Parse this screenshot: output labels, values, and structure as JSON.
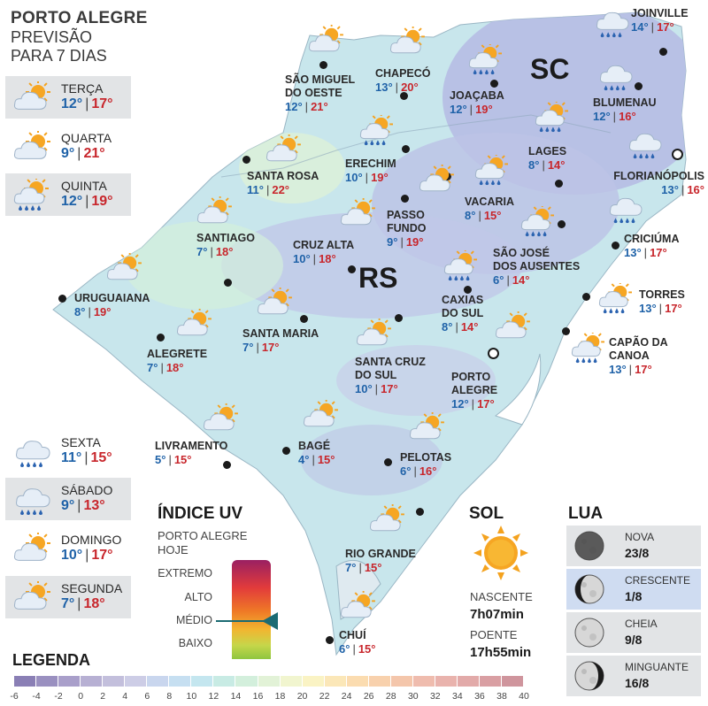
{
  "header": {
    "title": "PORTO ALEGRE",
    "subtitle_1": "PREVISÃO",
    "subtitle_2": "PARA 7 DIAS"
  },
  "forecast": [
    {
      "day": "TERÇA",
      "min": "12°",
      "max": "17°",
      "icon": "partly-cloudy-icon",
      "shaded": true
    },
    {
      "day": "QUARTA",
      "min": "9°",
      "max": "21°",
      "icon": "partly-cloudy-icon",
      "shaded": false
    },
    {
      "day": "QUINTA",
      "min": "12°",
      "max": "19°",
      "icon": "sun-rain-icon",
      "shaded": true
    },
    {
      "day": "SEXTA",
      "min": "11°",
      "max": "15°",
      "icon": "rain-cloud-icon",
      "shaded": false
    },
    {
      "day": "SÁBADO",
      "min": "9°",
      "max": "13°",
      "icon": "rain-cloud-icon",
      "shaded": true
    },
    {
      "day": "DOMINGO",
      "min": "10°",
      "max": "17°",
      "icon": "partly-cloudy-icon",
      "shaded": false
    },
    {
      "day": "SEGUNDA",
      "min": "7°",
      "max": "18°",
      "icon": "partly-cloudy-icon",
      "shaded": true
    }
  ],
  "states": {
    "sc": "SC",
    "rs": "RS"
  },
  "cities": [
    {
      "id": "joinville",
      "name": "JOINVILLE",
      "min": "14°",
      "max": "17°",
      "icon": "rain-cloud-icon"
    },
    {
      "id": "sao-miguel",
      "name": "SÃO MIGUEL\nDO OESTE",
      "min": "12°",
      "max": "21°",
      "icon": "partly-cloudy-icon"
    },
    {
      "id": "chapeco",
      "name": "CHAPECÓ",
      "min": "13°",
      "max": "20°",
      "icon": "partly-cloudy-icon"
    },
    {
      "id": "joacaba",
      "name": "JOAÇABA",
      "min": "12°",
      "max": "19°",
      "icon": "sun-rain-icon"
    },
    {
      "id": "blumenau",
      "name": "BLUMENAU",
      "min": "12°",
      "max": "16°",
      "icon": "rain-cloud-icon"
    },
    {
      "id": "lages",
      "name": "LAGES",
      "min": "8°",
      "max": "14°",
      "icon": "sun-rain-icon"
    },
    {
      "id": "florianopolis",
      "name": "FLORIANÓPOLIS",
      "min": "13°",
      "max": "16°",
      "icon": "rain-cloud-icon"
    },
    {
      "id": "santa-rosa",
      "name": "SANTA ROSA",
      "min": "11°",
      "max": "22°",
      "icon": "partly-cloudy-icon"
    },
    {
      "id": "erechim",
      "name": "ERECHIM",
      "min": "10°",
      "max": "19°",
      "icon": "sun-rain-icon"
    },
    {
      "id": "vacaria",
      "name": "VACARIA",
      "min": "8°",
      "max": "15°",
      "icon": "sun-rain-icon"
    },
    {
      "id": "passo-fundo",
      "name": "PASSO\nFUNDO",
      "min": "9°",
      "max": "19°",
      "icon": "partly-cloudy-icon"
    },
    {
      "id": "santiago",
      "name": "SANTIAGO",
      "min": "7°",
      "max": "18°",
      "icon": "partly-cloudy-icon"
    },
    {
      "id": "cruz-alta",
      "name": "CRUZ ALTA",
      "min": "10°",
      "max": "18°",
      "icon": "partly-cloudy-icon"
    },
    {
      "id": "sao-jose",
      "name": "SÃO JOSÉ\nDOS AUSENTES",
      "min": "6°",
      "max": "14°",
      "icon": "sun-rain-icon"
    },
    {
      "id": "criciuma",
      "name": "CRICIÚMA",
      "min": "13°",
      "max": "17°",
      "icon": "rain-cloud-icon"
    },
    {
      "id": "uruguaiana",
      "name": "URUGUAIANA",
      "min": "8°",
      "max": "19°",
      "icon": "partly-cloudy-icon"
    },
    {
      "id": "caxias",
      "name": "CAXIAS\nDO SUL",
      "min": "8°",
      "max": "14°",
      "icon": "sun-rain-icon"
    },
    {
      "id": "torres",
      "name": "TORRES",
      "min": "13°",
      "max": "17°",
      "icon": "sun-rain-icon"
    },
    {
      "id": "santa-maria",
      "name": "SANTA MARIA",
      "min": "7°",
      "max": "17°",
      "icon": "partly-cloudy-icon"
    },
    {
      "id": "alegrete",
      "name": "ALEGRETE",
      "min": "7°",
      "max": "18°",
      "icon": "partly-cloudy-icon"
    },
    {
      "id": "capao",
      "name": "CAPÃO DA\nCANOA",
      "min": "13°",
      "max": "17°",
      "icon": "sun-rain-icon"
    },
    {
      "id": "santa-cruz",
      "name": "SANTA CRUZ\nDO SUL",
      "min": "10°",
      "max": "17°",
      "icon": "partly-cloudy-icon"
    },
    {
      "id": "porto-alegre",
      "name": "PORTO\nALEGRE",
      "min": "12°",
      "max": "17°",
      "icon": "partly-cloudy-icon"
    },
    {
      "id": "livramento",
      "name": "LIVRAMENTO",
      "min": "5°",
      "max": "15°",
      "icon": "partly-cloudy-icon"
    },
    {
      "id": "bage",
      "name": "BAGÉ",
      "min": "4°",
      "max": "15°",
      "icon": "partly-cloudy-icon"
    },
    {
      "id": "pelotas",
      "name": "PELOTAS",
      "min": "6°",
      "max": "16°",
      "icon": "partly-cloudy-icon"
    },
    {
      "id": "rio-grande",
      "name": "RIO GRANDE",
      "min": "7°",
      "max": "15°",
      "icon": "partly-cloudy-icon"
    },
    {
      "id": "chui",
      "name": "CHUÍ",
      "min": "6°",
      "max": "15°",
      "icon": "partly-cloudy-icon"
    }
  ],
  "uv": {
    "title": "ÍNDICE UV",
    "subtitle_1": "PORTO ALEGRE",
    "subtitle_2": "HOJE",
    "levels": [
      "EXTREMO",
      "ALTO",
      "MÉDIO",
      "BAIXO"
    ],
    "current_level": "MÉDIO",
    "indicator_color": "#1b6b73"
  },
  "sun": {
    "title": "SOL",
    "sunrise_label": "NASCENTE",
    "sunrise": "7h07min",
    "sunset_label": "POENTE",
    "sunset": "17h55min"
  },
  "moon": {
    "title": "LUA",
    "phases": [
      {
        "name": "NOVA",
        "date": "23/8",
        "icon": "new-moon-icon",
        "highlight": false
      },
      {
        "name": "CRESCENTE",
        "date": "1/8",
        "icon": "waxing-moon-icon",
        "highlight": true
      },
      {
        "name": "CHEIA",
        "date": "9/8",
        "icon": "full-moon-icon",
        "highlight": false
      },
      {
        "name": "MINGUANTE",
        "date": "16/8",
        "icon": "waning-moon-icon",
        "highlight": false
      }
    ]
  },
  "legend": {
    "title": "LEGENDA",
    "ticks": [
      "-6",
      "-4",
      "-2",
      "0",
      "2",
      "4",
      "6",
      "8",
      "10",
      "12",
      "14",
      "16",
      "18",
      "20",
      "22",
      "24",
      "26",
      "28",
      "30",
      "32",
      "34",
      "36",
      "38",
      "40"
    ],
    "colors": [
      "#8a7fb5",
      "#9a90c0",
      "#a99fca",
      "#b7b0d3",
      "#c3bfdc",
      "#cdcde6",
      "#c9d6ee",
      "#c6dff1",
      "#c4e6ef",
      "#c8ebe4",
      "#d3efdc",
      "#e2f2d7",
      "#f1f5cf",
      "#faf3c4",
      "#fbe7b8",
      "#fbdcb0",
      "#f8d1ad",
      "#f4c6ab",
      "#efbcae",
      "#e9b3ad",
      "#e2aaa9",
      "#d99fa3",
      "#cf959d"
    ]
  }
}
